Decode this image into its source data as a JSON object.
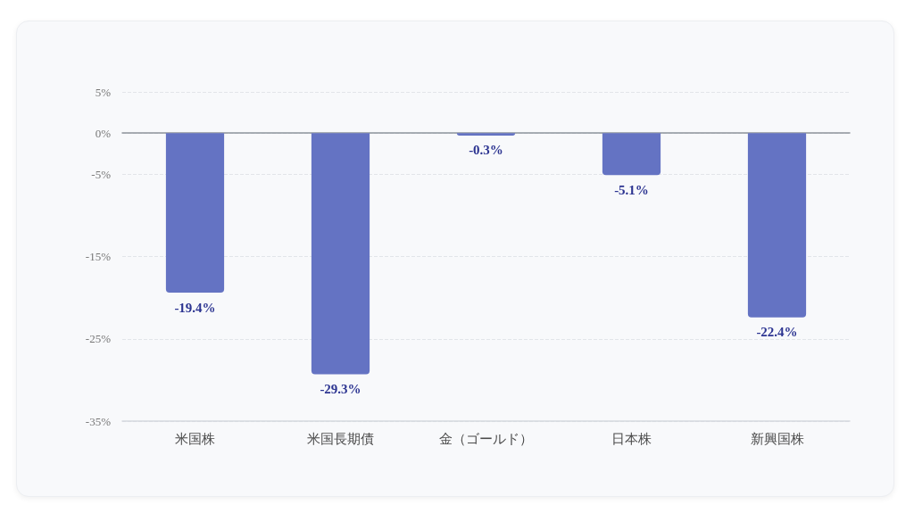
{
  "chart_data": {
    "type": "bar",
    "categories": [
      "米国株",
      "米国長期債",
      "金（ゴールド）",
      "日本株",
      "新興国株"
    ],
    "values": [
      -19.4,
      -29.3,
      -0.3,
      -5.1,
      -22.4
    ],
    "color": "#6473c3",
    "value_labels": [
      "-19.4%",
      "-29.3%",
      "-0.3%",
      "-5.1%",
      "-22.4%"
    ],
    "ylim": [
      -35,
      5
    ],
    "yticks": [
      {
        "value": 5,
        "label": "5%"
      },
      {
        "value": 0,
        "label": "0%"
      },
      {
        "value": -5,
        "label": "-5%"
      },
      {
        "value": -15,
        "label": "-15%"
      },
      {
        "value": -25,
        "label": "-25%"
      },
      {
        "value": -35,
        "label": "-35%"
      }
    ],
    "grid": "y"
  }
}
